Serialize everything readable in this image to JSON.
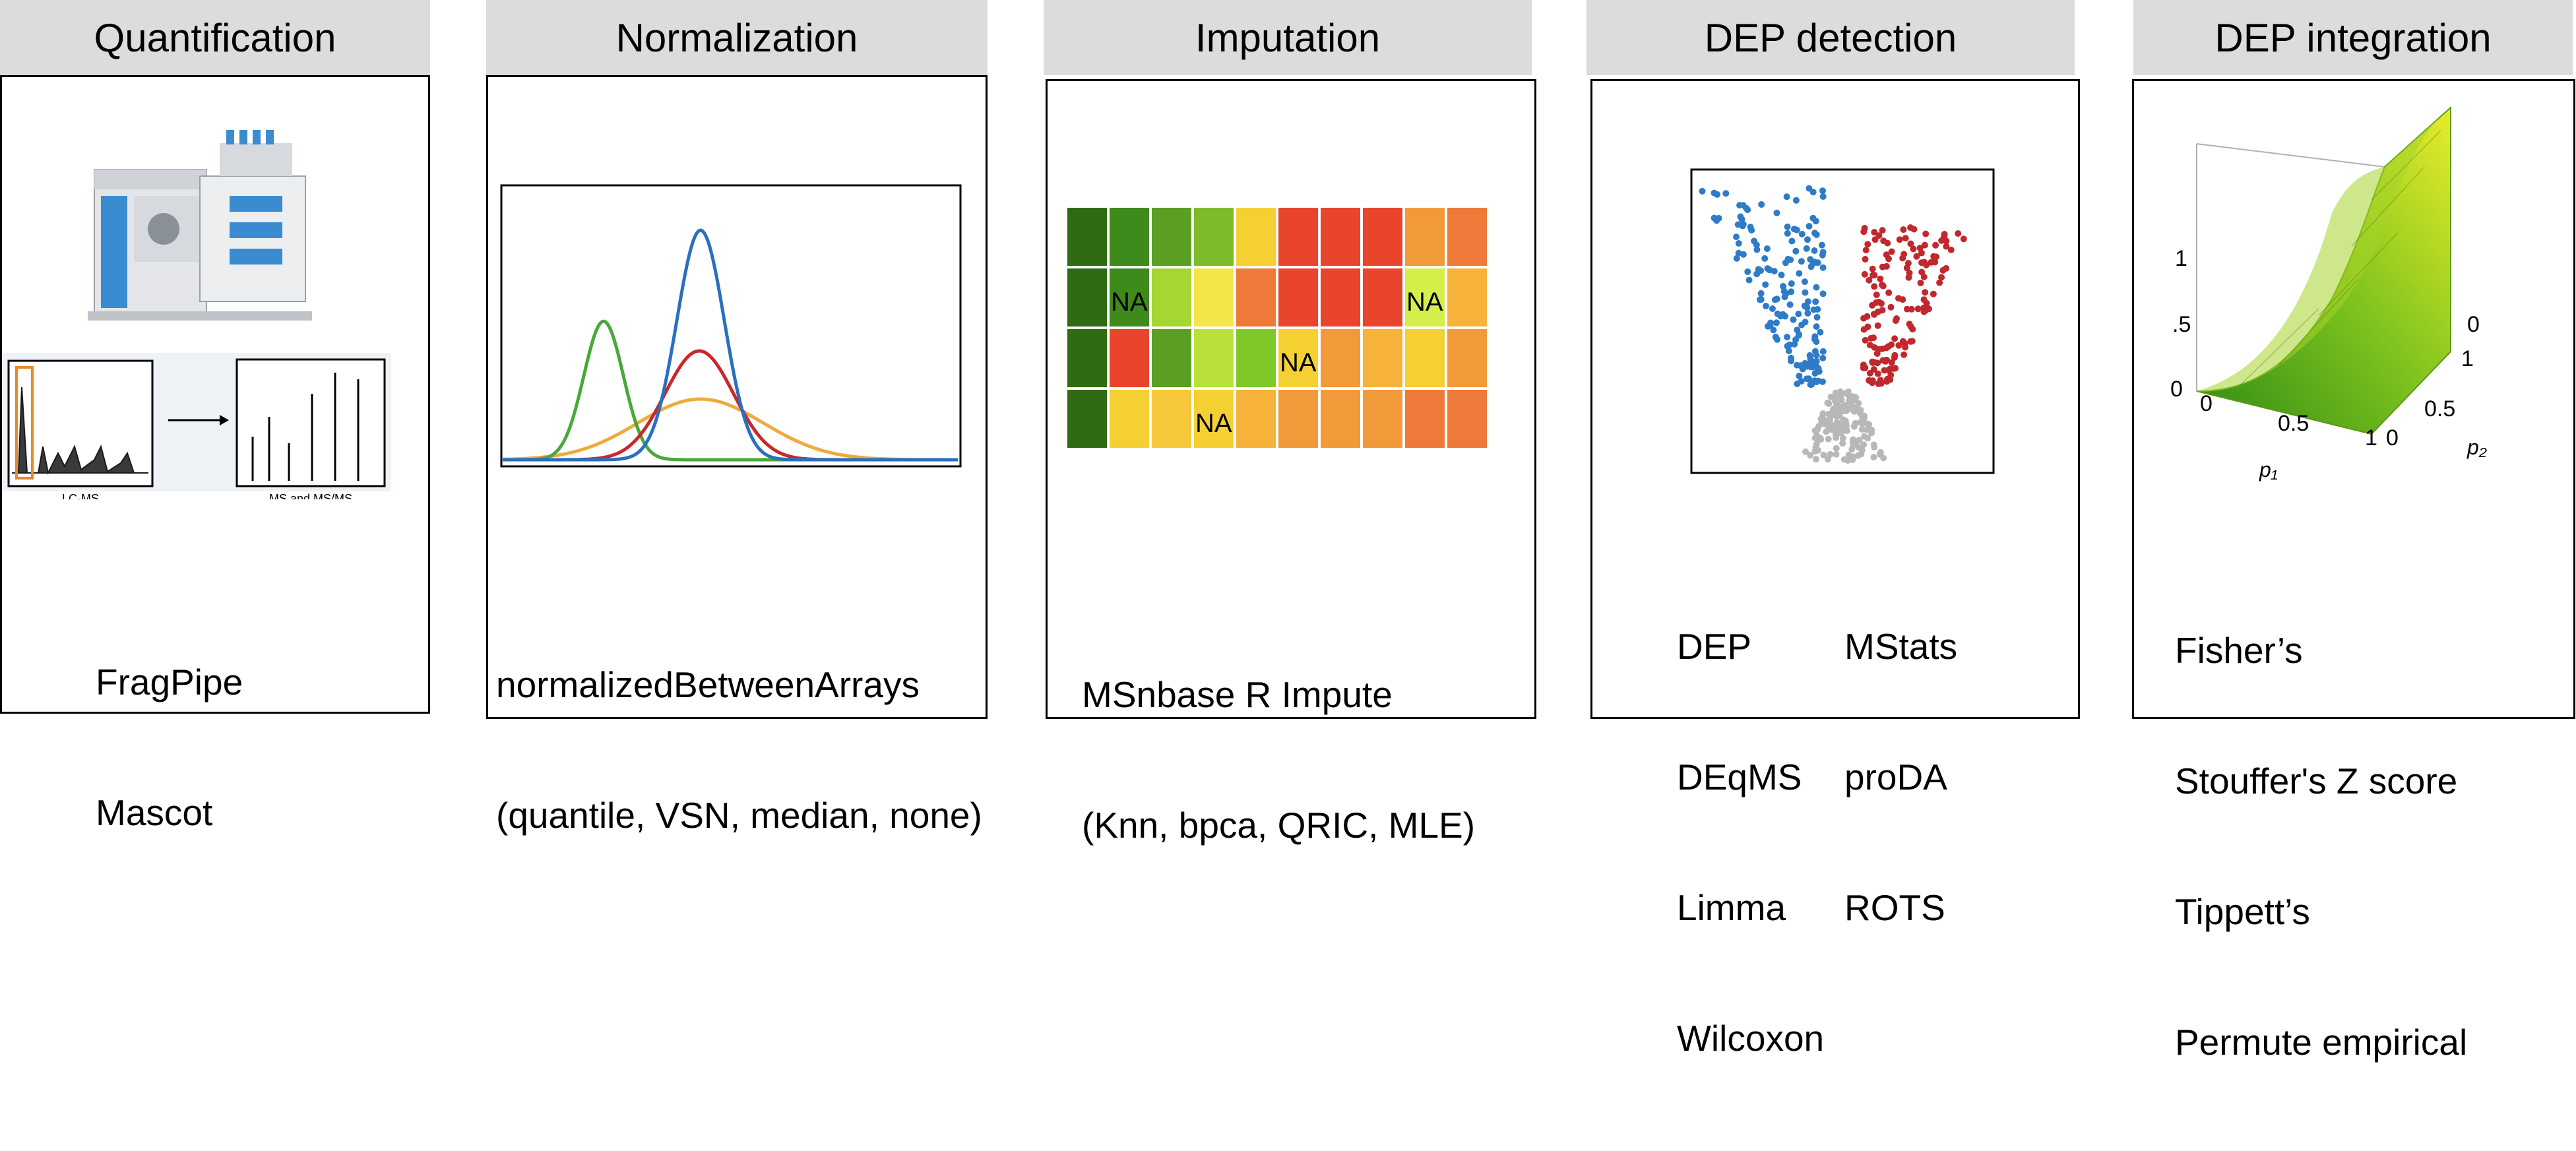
{
  "columns": [
    {
      "header": "Quantification",
      "lines": [
        "FragPipe",
        "Mascot"
      ]
    },
    {
      "header": "Normalization",
      "lines": [
        "normalizedBetweenArrays",
        "(quantile, VSN, median, none)"
      ]
    },
    {
      "header": "Imputation",
      "lines": [
        "MSnbase R Impute",
        "(Knn, bpca, QRIC, MLE)"
      ]
    },
    {
      "header": "DEP detection",
      "lines_left": [
        "DEP",
        "DEqMS",
        "Limma",
        "Wilcoxon"
      ],
      "lines_right": [
        "MStats",
        "proDA",
        "ROTS"
      ]
    },
    {
      "header": "DEP integration",
      "lines": [
        "Fisher’s",
        "Stouffer's Z score",
        "Tippett’s",
        "Permute empirical"
      ]
    }
  ],
  "quantification_figure": {
    "left_label": "LC-MS",
    "right_label": "MS and MS/MS"
  },
  "heatmap": {
    "na_label": "NA",
    "rows": [
      [
        "#2e6b12",
        "#3e8a1a",
        "#5a9e22",
        "#7dbb2a",
        "#f5d033",
        "#e8452c",
        "#e8452c",
        "#e8452c",
        "#f29a3a",
        "#ee7a3a"
      ],
      [
        "#2e6b12",
        "#3e8a1a",
        "#a6d632",
        "#f3e64a",
        "#ee7a3a",
        "#e8452c",
        "#e8452c",
        "#e8452c",
        "#d6ee4a",
        "#f7b23a"
      ],
      [
        "#2e6b12",
        "#e8452c",
        "#5a9e22",
        "#b8e23a",
        "#7fc82a",
        "#f5d033",
        "#f29a3a",
        "#f7b23a",
        "#f5d033",
        "#f29a3a"
      ],
      [
        "#2e6b12",
        "#f5d033",
        "#f7c83a",
        "#f5d033",
        "#f7b23a",
        "#f29a3a",
        "#f29a3a",
        "#f29a3a",
        "#ee7a3a",
        "#ee7a3a"
      ]
    ],
    "na_cells": [
      [
        1,
        1
      ],
      [
        1,
        8
      ],
      [
        2,
        5
      ],
      [
        3,
        3
      ]
    ]
  },
  "surface_plot": {
    "z_ticks": [
      "1",
      ".5",
      "0"
    ],
    "p1_ticks": [
      "0",
      "0.5",
      "1"
    ],
    "p2_ticks": [
      "0",
      "0.5",
      "1"
    ],
    "right_top_tick": "0",
    "x_label": "p₁",
    "y_label": "p₂"
  },
  "colors": {
    "header_bg": "#dcdcdc",
    "curve_green": "#4aa83a",
    "curve_orange": "#f0aa3c",
    "curve_red": "#c8282a",
    "curve_blue": "#2a6fc0",
    "volcano_blue": "#2e7bc8",
    "volcano_red": "#c0282e",
    "volcano_gray": "#b8b8b8"
  }
}
